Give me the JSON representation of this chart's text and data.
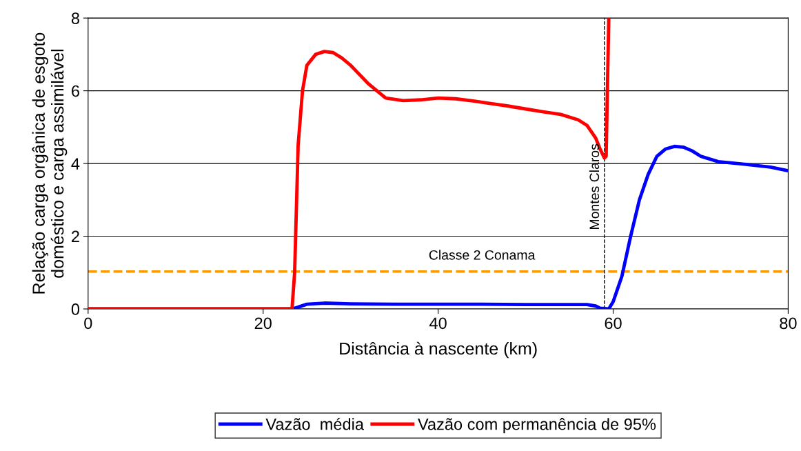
{
  "chart_data": {
    "type": "line",
    "xlabel": "Distância à nascente (km)",
    "ylabel": "Relação carga orgânica de esgoto\ndoméstico e carga assimilável",
    "xlim": [
      0,
      80
    ],
    "ylim": [
      0,
      8
    ],
    "xticks": [
      0,
      20,
      40,
      60,
      80
    ],
    "yticks": [
      0,
      2,
      4,
      6,
      8
    ],
    "grid": "y",
    "legend": "bottom",
    "line_style": "solid",
    "marker": "none",
    "series": [
      {
        "name": "Vazão  média",
        "color": "#0000ff",
        "x": [
          0,
          23.3,
          24,
          25,
          27,
          30,
          35,
          45,
          50,
          57,
          58,
          58.5,
          59.5,
          60,
          61,
          62,
          63,
          64,
          65,
          66,
          67,
          68,
          69,
          70,
          72,
          75,
          78,
          80
        ],
        "values": [
          0,
          0,
          0.05,
          0.13,
          0.16,
          0.14,
          0.13,
          0.13,
          0.12,
          0.12,
          0.08,
          0.02,
          0,
          0.2,
          0.9,
          2.0,
          3.0,
          3.7,
          4.2,
          4.4,
          4.47,
          4.45,
          4.35,
          4.2,
          4.05,
          3.98,
          3.9,
          3.8
        ]
      },
      {
        "name": "Vazão com permanência de 95%",
        "color": "#ff0000",
        "x": [
          0,
          23.3,
          23.6,
          24,
          24.5,
          25,
          26,
          27,
          28,
          29,
          30,
          32,
          34,
          36,
          38,
          40,
          42,
          44,
          46,
          48,
          50,
          52,
          54,
          56,
          57,
          58,
          58.5,
          59,
          59.2,
          59.3,
          59.5
        ],
        "values": [
          0,
          0,
          1,
          4.5,
          6,
          6.7,
          7.0,
          7.08,
          7.05,
          6.9,
          6.7,
          6.2,
          5.8,
          5.73,
          5.75,
          5.8,
          5.78,
          5.72,
          5.65,
          5.58,
          5.5,
          5.42,
          5.35,
          5.2,
          5.05,
          4.7,
          4.4,
          4.15,
          4.2,
          5.5,
          8
        ]
      }
    ],
    "ref_lines": [
      {
        "axis": "y",
        "value": 1.03,
        "label": "Classe 2 Conama",
        "color": "#ff9900",
        "line_style": "dashed"
      },
      {
        "axis": "x",
        "value": 59,
        "label": "Montes Claros",
        "color": "#000000",
        "line_style": "dashed"
      }
    ]
  }
}
